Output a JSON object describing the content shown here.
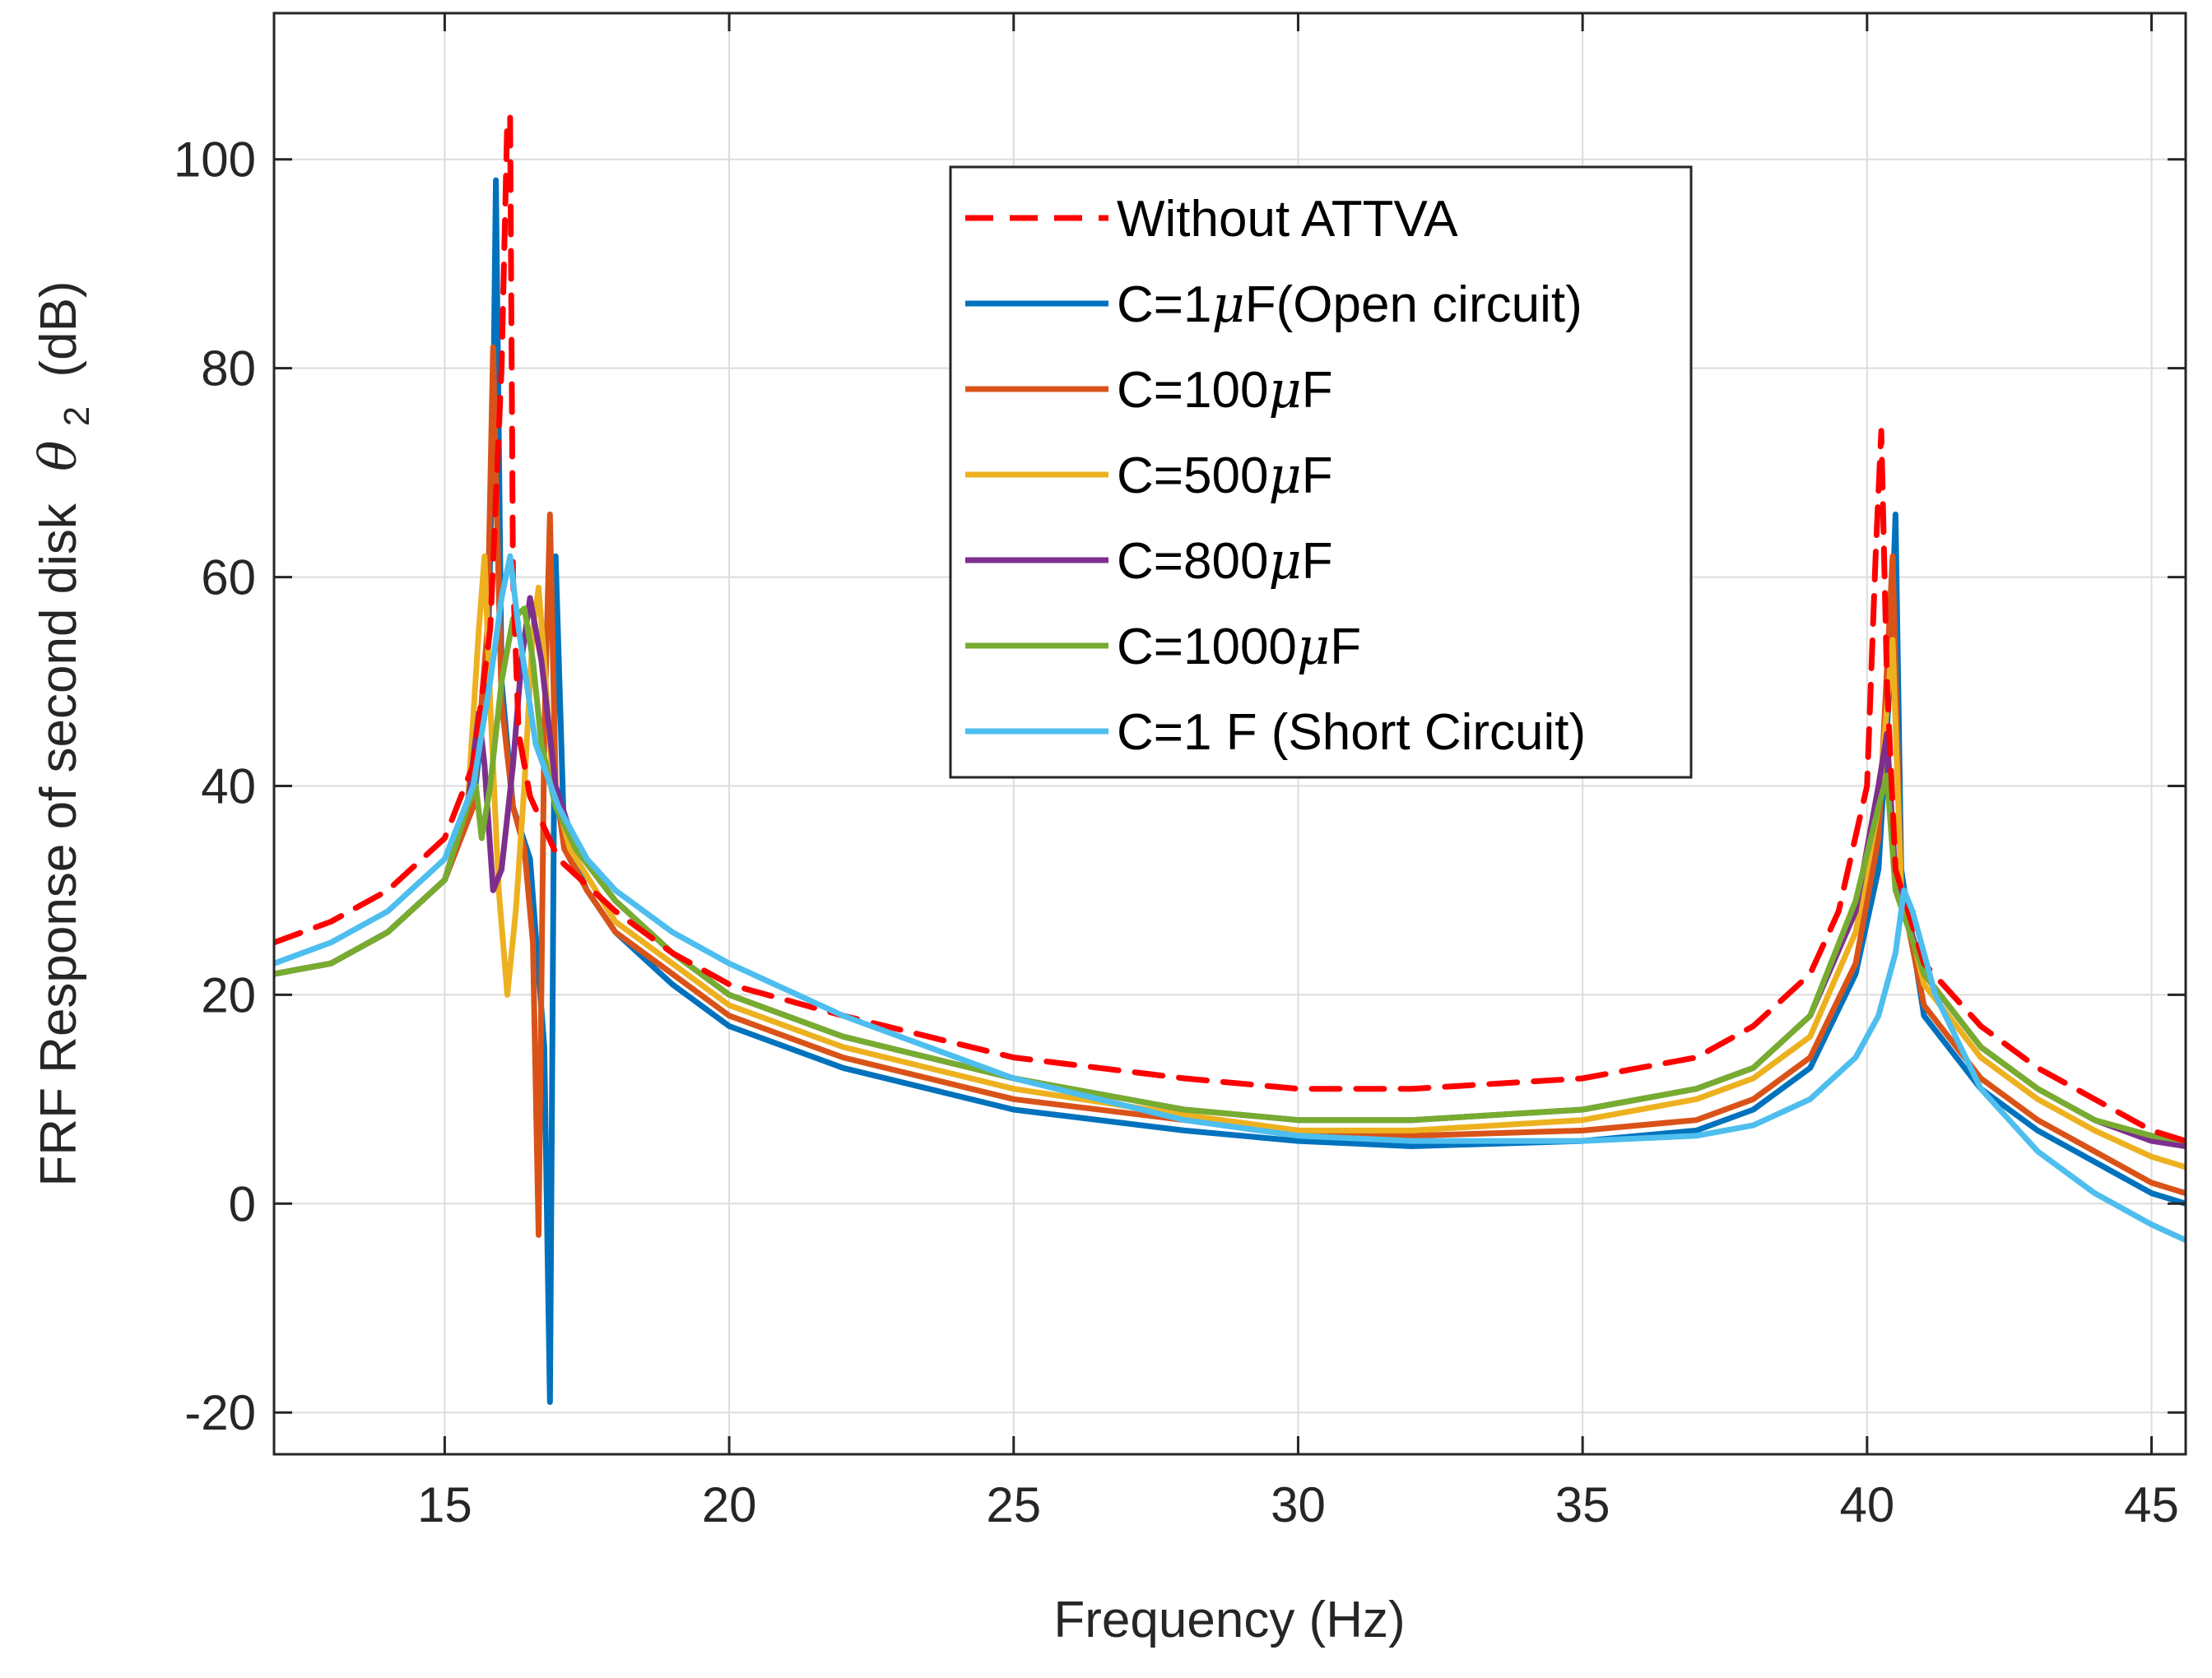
{
  "chart_data": {
    "type": "line",
    "title": "",
    "xlabel": "Frequency (Hz)",
    "ylabel": "FRF Response of second disk",
    "ylabel_symbol": "θ",
    "ylabel_subscript": "2",
    "ylabel_unit": "(dB)",
    "xlim": [
      12,
      45.6
    ],
    "ylim": [
      -24,
      114
    ],
    "xticks": [
      15,
      20,
      25,
      30,
      35,
      40,
      45
    ],
    "yticks": [
      -20,
      0,
      20,
      40,
      60,
      80,
      100
    ],
    "grid": true,
    "legend_position": "upper-middle",
    "series": [
      {
        "name": "Without ATTVA",
        "legend_parts": [
          "Without ATTVA"
        ],
        "color": "#ff0000",
        "style": "dashed",
        "x": [
          12,
          13,
          14,
          15,
          15.5,
          15.8,
          16.0,
          16.1,
          16.15,
          16.2,
          16.3,
          16.5,
          17,
          18,
          19,
          20,
          22,
          25,
          28,
          30,
          32,
          35,
          37,
          38,
          39,
          39.5,
          40,
          40.15,
          40.25,
          40.35,
          40.5,
          41,
          42,
          43,
          44,
          45,
          45.6
        ],
        "y": [
          25,
          27,
          30,
          35,
          42,
          55,
          80,
          104,
          104,
          60,
          45,
          39,
          33,
          28,
          24,
          21,
          18,
          14,
          12,
          11,
          11,
          12,
          14,
          17,
          22,
          28,
          40,
          62,
          74,
          50,
          32,
          23,
          17,
          13,
          10,
          7,
          6
        ]
      },
      {
        "name": "C=1μF(Open circuit)",
        "legend_parts": [
          "C=1",
          "μ",
          "F(Open circuit)"
        ],
        "color": "#0072bd",
        "style": "solid",
        "x": [
          12,
          13,
          14,
          15,
          15.5,
          15.75,
          15.85,
          15.9,
          16.0,
          16.2,
          16.5,
          16.75,
          16.85,
          16.95,
          17.1,
          17.5,
          18,
          19,
          20,
          22,
          25,
          28,
          30,
          32,
          35,
          37,
          38,
          39,
          39.8,
          40.2,
          40.4,
          40.5,
          40.6,
          41,
          42,
          43,
          44,
          45,
          45.6
        ],
        "y": [
          22,
          23,
          26,
          31,
          38,
          50,
          75,
          98,
          50,
          38,
          33,
          15,
          -19,
          62,
          35,
          30,
          26,
          21,
          17,
          13,
          9,
          7,
          6,
          5.5,
          6,
          7,
          9,
          13,
          22,
          32,
          50,
          66,
          32,
          18,
          11,
          7,
          4,
          1,
          0
        ]
      },
      {
        "name": "C=100μF",
        "legend_parts": [
          "C=100",
          "μ",
          "F"
        ],
        "color": "#d95319",
        "style": "solid",
        "x": [
          12,
          13,
          14,
          15,
          15.5,
          15.75,
          15.85,
          15.9,
          16.0,
          16.2,
          16.4,
          16.55,
          16.65,
          16.75,
          16.85,
          16.95,
          17.1,
          17.5,
          18,
          19,
          20,
          22,
          25,
          28,
          30,
          32,
          35,
          37,
          38,
          39,
          39.8,
          40.2,
          40.45,
          40.6,
          41,
          42,
          43,
          44,
          45,
          45.6
        ],
        "y": [
          22,
          23,
          26,
          31,
          38,
          55,
          82,
          70,
          48,
          38,
          34,
          25,
          -3,
          45,
          66,
          40,
          34,
          30,
          26,
          22,
          18,
          14,
          10,
          8,
          7,
          6.5,
          7,
          8,
          10,
          14,
          23,
          35,
          62,
          30,
          19,
          12,
          8,
          5,
          2,
          1
        ]
      },
      {
        "name": "C=500μF",
        "legend_parts": [
          "C=500",
          "μ",
          "F"
        ],
        "color": "#edb120",
        "style": "solid",
        "x": [
          12,
          13,
          14,
          15,
          15.4,
          15.6,
          15.7,
          15.8,
          15.95,
          16.1,
          16.25,
          16.4,
          16.55,
          16.65,
          16.75,
          16.9,
          17.2,
          18,
          19,
          20,
          22,
          25,
          28,
          30,
          32,
          35,
          37,
          38,
          39,
          39.8,
          40.2,
          40.45,
          40.6,
          41,
          42,
          43,
          44,
          45,
          45.6
        ],
        "y": [
          22,
          23,
          26,
          31,
          38,
          55,
          62,
          48,
          30,
          20,
          28,
          40,
          55,
          59,
          52,
          40,
          34,
          27,
          23,
          19,
          15,
          11,
          8.5,
          7,
          7,
          8,
          10,
          12,
          16,
          26,
          38,
          54,
          30,
          21,
          14,
          10,
          7,
          4.5,
          3.5
        ]
      },
      {
        "name": "C=800μF",
        "legend_parts": [
          "C=800",
          "μ",
          "F"
        ],
        "color": "#7e2f8e",
        "style": "solid",
        "x": [
          12,
          13,
          14,
          15,
          15.4,
          15.6,
          15.7,
          15.85,
          16.0,
          16.2,
          16.35,
          16.5,
          16.7,
          16.95,
          17.3,
          18,
          19,
          20,
          22,
          25,
          28,
          30,
          32,
          35,
          37,
          38,
          39,
          39.8,
          40.2,
          40.35,
          40.5,
          41,
          42,
          43,
          44,
          45,
          45.6
        ],
        "y": [
          22,
          23,
          26,
          31,
          38,
          47,
          42,
          30,
          32,
          42,
          52,
          58,
          52,
          40,
          34,
          29,
          24,
          20,
          16,
          12,
          9,
          8,
          8,
          9,
          11,
          13,
          18,
          28,
          40,
          45,
          31,
          22,
          15,
          11,
          8,
          6,
          5.5
        ]
      },
      {
        "name": "C=1000μF",
        "legend_parts": [
          "C=1000",
          "μ",
          "F"
        ],
        "color": "#77ac30",
        "style": "solid",
        "x": [
          12,
          13,
          14,
          15,
          15.4,
          15.55,
          15.65,
          15.8,
          16.0,
          16.2,
          16.4,
          16.55,
          16.7,
          16.95,
          17.3,
          18,
          19,
          20,
          22,
          25,
          28,
          30,
          32,
          35,
          37,
          38,
          39,
          39.8,
          40.2,
          40.35,
          40.5,
          41,
          42,
          43,
          44,
          45,
          45.6
        ],
        "y": [
          22,
          23,
          26,
          31,
          38,
          40,
          35,
          40,
          50,
          56,
          57,
          52,
          44,
          38,
          34,
          29,
          24,
          20,
          16,
          12,
          9,
          8,
          8,
          9,
          11,
          13,
          18,
          29,
          38,
          41,
          30,
          22,
          15,
          11,
          8,
          6.5,
          6
        ]
      },
      {
        "name": "C=1 F (Short Circuit)",
        "legend_parts": [
          "C=1 F (Short Circuit)"
        ],
        "color": "#4dbeee",
        "style": "solid",
        "x": [
          12,
          13,
          14,
          15,
          15.5,
          15.8,
          16.0,
          16.15,
          16.3,
          16.6,
          17.0,
          17.5,
          18,
          19,
          20,
          22,
          25,
          28,
          30,
          32,
          35,
          37,
          38,
          39,
          39.8,
          40.2,
          40.5,
          40.65,
          40.8,
          41.2,
          42,
          43,
          44,
          45,
          45.6
        ],
        "y": [
          23,
          25,
          28,
          33,
          40,
          50,
          58,
          62,
          55,
          44,
          38,
          33,
          30,
          26,
          23,
          18,
          12,
          8,
          6.5,
          6,
          6,
          6.5,
          7.5,
          10,
          14,
          18,
          24,
          30,
          28,
          20,
          11,
          5,
          1,
          -2,
          -3.5
        ]
      }
    ]
  }
}
